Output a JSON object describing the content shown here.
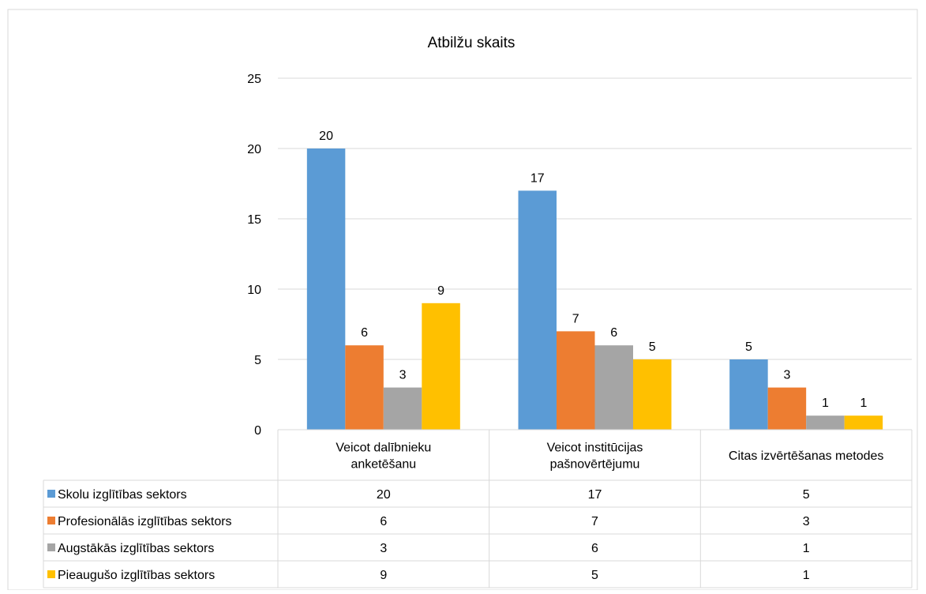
{
  "chart_data": {
    "type": "bar",
    "title": "Atbilžu skaits",
    "categories": [
      [
        "Veicot dalībnieku",
        "anketēšanu"
      ],
      [
        "Veicot institūcijas",
        "pašnovērtējumu"
      ],
      [
        "Citas izvērtēšanas metodes"
      ]
    ],
    "series": [
      {
        "name": "Skolu izglītības sektors",
        "color": "#5B9BD5",
        "values": [
          20,
          17,
          5
        ]
      },
      {
        "name": "Profesionālās izglītības sektors",
        "color": "#ED7D31",
        "values": [
          6,
          7,
          3
        ]
      },
      {
        "name": "Augstākās izglītības sektors",
        "color": "#A5A5A5",
        "values": [
          3,
          6,
          1
        ]
      },
      {
        "name": "Pieaugušo izglītības sektors",
        "color": "#FFC000",
        "values": [
          9,
          5,
          1
        ]
      }
    ],
    "y_ticks": [
      0,
      5,
      10,
      15,
      20,
      25
    ],
    "ylim": [
      0,
      25
    ],
    "grid": true,
    "legend": "data-table"
  }
}
